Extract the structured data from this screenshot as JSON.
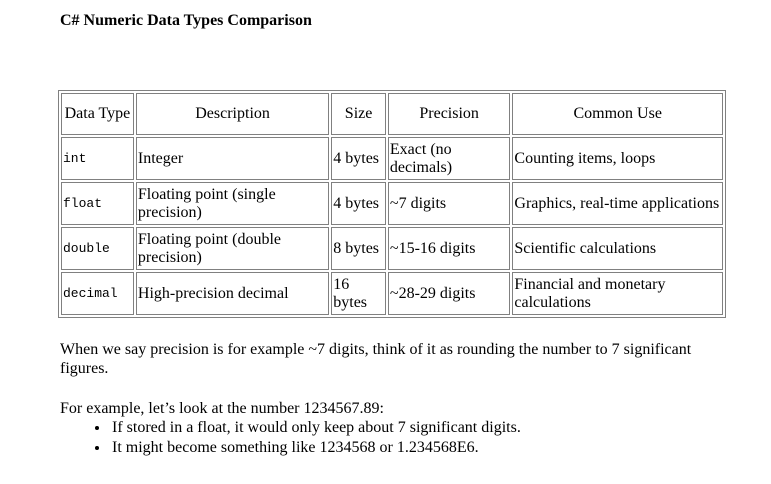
{
  "title": "C# Numeric Data Types Comparison",
  "table": {
    "headers": [
      "Data Type",
      "Description",
      "Size",
      "Precision",
      "Common Use"
    ],
    "rows": [
      [
        "int",
        "Integer",
        "4 bytes",
        "Exact (no decimals)",
        "Counting items, loops"
      ],
      [
        "float",
        "Floating point (single precision)",
        "4 bytes",
        "~7 digits",
        "Graphics, real-time applications"
      ],
      [
        "double",
        "Floating point (double precision)",
        "8 bytes",
        "~15-16 digits",
        "Scientific calculations"
      ],
      [
        "decimal",
        "High-precision decimal",
        "16 bytes",
        "~28-29 digits",
        "Financial and monetary calculations"
      ]
    ]
  },
  "paragraph1": "When we say precision is for example ~7 digits, think of it as rounding the number to 7 significant figures.",
  "paragraph2": "For example, let’s look at the number 1234567.89:",
  "bullets": [
    "If stored in a float, it would only keep about 7 significant digits.",
    "It might become something like 1234568 or 1.234568E6."
  ]
}
